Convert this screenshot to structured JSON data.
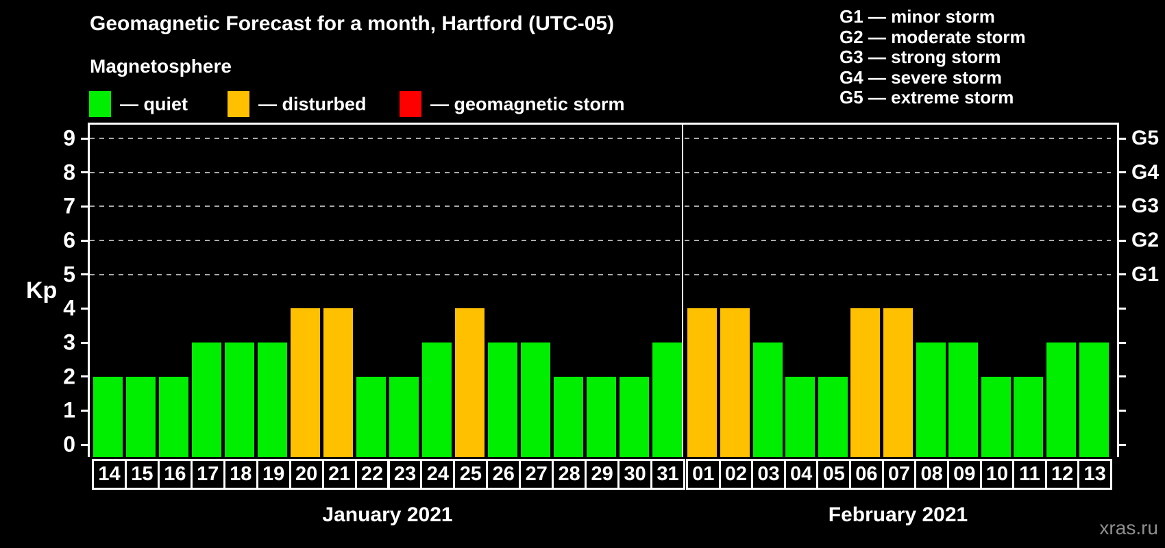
{
  "title": "Geomagnetic Forecast for a month, Hartford (UTC-05)",
  "subtitle": "Magnetosphere",
  "legend": {
    "items": [
      {
        "name": "quiet",
        "label": "— quiet",
        "color": "#00ee00"
      },
      {
        "name": "disturbed",
        "label": "— disturbed",
        "color": "#ffc000"
      },
      {
        "name": "storm",
        "label": "— geomagnetic storm",
        "color": "#ff0000"
      }
    ]
  },
  "storm_legend": [
    "G1 — minor storm",
    "G2 — moderate storm",
    "G3 — strong storm",
    "G4 — severe storm",
    "G5 — extreme storm"
  ],
  "watermark": "xras.ru",
  "chart_data": {
    "type": "bar",
    "title": "Geomagnetic Forecast for a month, Hartford (UTC-05)",
    "ylabel": "Kp",
    "ylim": [
      0,
      9
    ],
    "y_ticks": [
      0,
      1,
      2,
      3,
      4,
      5,
      6,
      7,
      8,
      9
    ],
    "grid": "dashed horizontal lines at Kp 5-9 only",
    "right_axis_labels": [
      {
        "text": "G1",
        "kp": 5
      },
      {
        "text": "G2",
        "kp": 6
      },
      {
        "text": "G3",
        "kp": 7
      },
      {
        "text": "G4",
        "kp": 8
      },
      {
        "text": "G5",
        "kp": 9
      }
    ],
    "colors": {
      "quiet": "#00ee00",
      "disturbed": "#ffc000",
      "storm": "#ff0000"
    },
    "months": [
      {
        "label": "January 2021",
        "days": [
          "14",
          "15",
          "16",
          "17",
          "18",
          "19",
          "20",
          "21",
          "22",
          "23",
          "24",
          "25",
          "26",
          "27",
          "28",
          "29",
          "30",
          "31"
        ],
        "values": [
          2,
          2,
          2,
          3,
          3,
          3,
          4,
          4,
          2,
          2,
          3,
          4,
          3,
          3,
          2,
          2,
          2,
          3
        ],
        "statuses": [
          "quiet",
          "quiet",
          "quiet",
          "quiet",
          "quiet",
          "quiet",
          "disturbed",
          "disturbed",
          "quiet",
          "quiet",
          "quiet",
          "disturbed",
          "quiet",
          "quiet",
          "quiet",
          "quiet",
          "quiet",
          "quiet"
        ]
      },
      {
        "label": "February 2021",
        "days": [
          "01",
          "02",
          "03",
          "04",
          "05",
          "06",
          "07",
          "08",
          "09",
          "10",
          "11",
          "12",
          "13"
        ],
        "values": [
          4,
          4,
          3,
          2,
          2,
          4,
          4,
          3,
          3,
          2,
          2,
          3,
          3
        ],
        "statuses": [
          "disturbed",
          "disturbed",
          "quiet",
          "quiet",
          "quiet",
          "disturbed",
          "disturbed",
          "quiet",
          "quiet",
          "quiet",
          "quiet",
          "quiet",
          "quiet"
        ]
      }
    ]
  }
}
